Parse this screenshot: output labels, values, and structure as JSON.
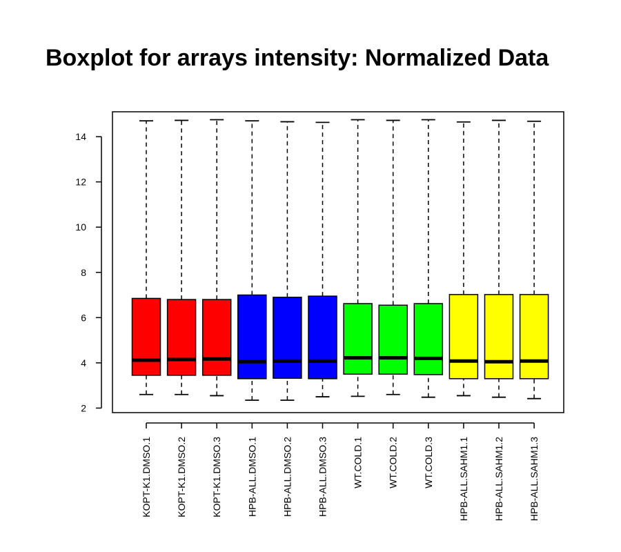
{
  "chart_data": {
    "type": "boxplot",
    "title": "Boxplot for arrays intensity: Normalized Data",
    "xlabel": "",
    "ylabel": "",
    "ylim": [
      1.8,
      15.1
    ],
    "yticks": [
      2,
      4,
      6,
      8,
      10,
      12,
      14
    ],
    "grid": false,
    "categories": [
      "KOPT-K1.DMSO.1",
      "KOPT-K1.DMSO.2",
      "KOPT-K1.DMSO.3",
      "HPB-ALL.DMSO.1",
      "HPB-ALL.DMSO.2",
      "HPB-ALL.DMSO.3",
      "WT.COLD.1",
      "WT.COLD.2",
      "WT.COLD.3",
      "HPB-ALL.SAHM1.1",
      "HPB-ALL.SAHM1.2",
      "HPB-ALL.SAHM1.3"
    ],
    "colors": [
      "#ff0000",
      "#ff0000",
      "#ff0000",
      "#0000ff",
      "#0000ff",
      "#0000ff",
      "#00ff00",
      "#00ff00",
      "#00ff00",
      "#ffff00",
      "#ffff00",
      "#ffff00"
    ],
    "boxes": [
      {
        "min": 2.6,
        "q1": 3.45,
        "median": 4.12,
        "q3": 6.85,
        "max": 14.7
      },
      {
        "min": 2.6,
        "q1": 3.45,
        "median": 4.15,
        "q3": 6.8,
        "max": 14.72
      },
      {
        "min": 2.55,
        "q1": 3.45,
        "median": 4.17,
        "q3": 6.8,
        "max": 14.75
      },
      {
        "min": 2.35,
        "q1": 3.3,
        "median": 4.05,
        "q3": 7.0,
        "max": 14.7
      },
      {
        "min": 2.35,
        "q1": 3.32,
        "median": 4.08,
        "q3": 6.9,
        "max": 14.66
      },
      {
        "min": 2.5,
        "q1": 3.3,
        "median": 4.08,
        "q3": 6.95,
        "max": 14.63
      },
      {
        "min": 2.52,
        "q1": 3.5,
        "median": 4.22,
        "q3": 6.62,
        "max": 14.75
      },
      {
        "min": 2.6,
        "q1": 3.5,
        "median": 4.22,
        "q3": 6.55,
        "max": 14.72
      },
      {
        "min": 2.48,
        "q1": 3.48,
        "median": 4.2,
        "q3": 6.62,
        "max": 14.75
      },
      {
        "min": 2.55,
        "q1": 3.3,
        "median": 4.08,
        "q3": 7.02,
        "max": 14.65
      },
      {
        "min": 2.48,
        "q1": 3.3,
        "median": 4.05,
        "q3": 7.02,
        "max": 14.72
      },
      {
        "min": 2.42,
        "q1": 3.3,
        "median": 4.08,
        "q3": 7.02,
        "max": 14.68
      }
    ]
  }
}
